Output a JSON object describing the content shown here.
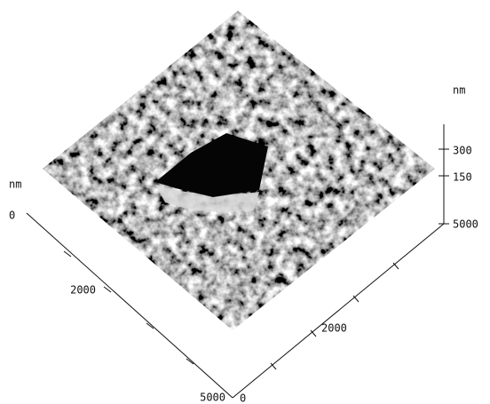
{
  "left_axis": {
    "unit": "nm",
    "ticks": [
      "0",
      "2000",
      "5000"
    ]
  },
  "right_axis": {
    "ticks": [
      "0",
      "2000",
      "5000"
    ]
  },
  "z_axis": {
    "unit": "nm",
    "ticks": [
      "300",
      "150"
    ]
  }
}
